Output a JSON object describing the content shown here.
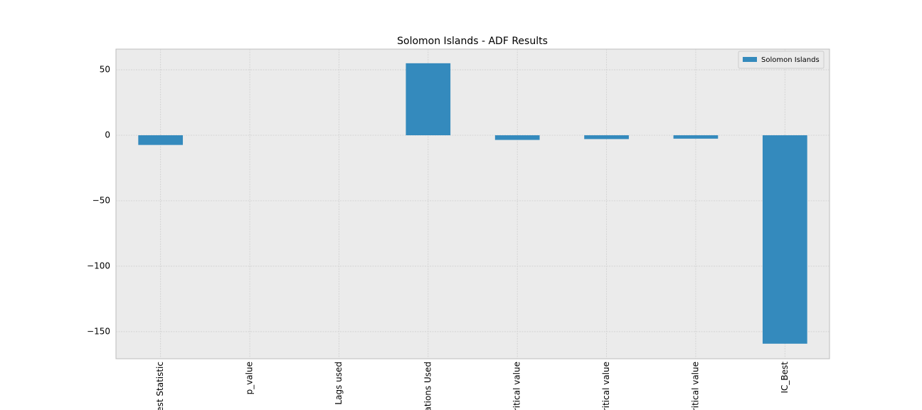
{
  "chart_data": {
    "type": "bar",
    "title": "Solomon Islands - ADF Results",
    "categories": [
      "est Statistic",
      "p_value",
      "Lags used",
      "ations Used",
      "ritical value",
      "ritical value",
      "ritical value",
      "IC_Best"
    ],
    "series": [
      {
        "name": "Solomon Islands",
        "color": "#348abd",
        "values": [
          -7.4,
          0.0,
          0,
          55,
          -3.56,
          -2.92,
          -2.6,
          -159.2
        ]
      }
    ],
    "ylim": [
      -170.7,
      65.8
    ],
    "yticks": [
      {
        "value": -150,
        "label": "−150"
      },
      {
        "value": -100,
        "label": "−100"
      },
      {
        "value": -50,
        "label": "−50"
      },
      0,
      50
    ],
    "grid": true,
    "legend": "upper right"
  }
}
